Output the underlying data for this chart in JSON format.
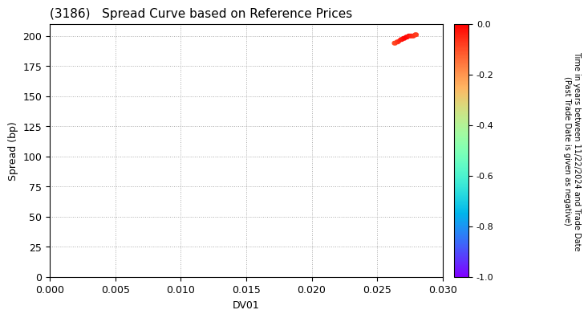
{
  "title": "(3186)   Spread Curve based on Reference Prices",
  "xlabel": "DV01",
  "ylabel": "Spread (bp)",
  "xlim": [
    0.0,
    0.03
  ],
  "ylim": [
    0,
    210
  ],
  "xticks": [
    0.0,
    0.005,
    0.01,
    0.015,
    0.02,
    0.025,
    0.03
  ],
  "yticks": [
    0,
    25,
    50,
    75,
    100,
    125,
    150,
    175,
    200
  ],
  "colorbar_label": "Time in years between 11/22/2024 and Trade Date\n(Past Trade Date is given as negative)",
  "colorbar_min": -1.0,
  "colorbar_max": 0.0,
  "colorbar_ticks": [
    0.0,
    -0.2,
    -0.4,
    -0.6,
    -0.8,
    -1.0
  ],
  "colorbar_ticklabels": [
    "0.0",
    "-0.2",
    "-0.4",
    "-0.6",
    "-0.8",
    "-1.0"
  ],
  "scatter_x": [
    0.0263,
    0.0264,
    0.0265,
    0.0266,
    0.0267,
    0.0268,
    0.0269,
    0.027,
    0.0271,
    0.0272,
    0.0273,
    0.0274,
    0.0275,
    0.0276,
    0.0277,
    0.0278,
    0.0279,
    0.028
  ],
  "scatter_y": [
    194,
    194,
    195,
    195,
    196,
    197,
    197,
    198,
    198,
    199,
    199,
    200,
    200,
    200,
    200,
    200,
    201,
    201
  ],
  "scatter_c": [
    -0.1,
    -0.09,
    -0.08,
    -0.07,
    -0.05,
    -0.04,
    -0.03,
    -0.02,
    -0.01,
    0.0,
    -0.01,
    -0.02,
    -0.03,
    -0.04,
    -0.05,
    -0.06,
    -0.07,
    -0.08
  ],
  "point_size": 18,
  "background_color": "#ffffff",
  "grid_color": "#aaaaaa",
  "title_fontsize": 11,
  "axis_label_fontsize": 9,
  "tick_fontsize": 9,
  "cbar_tick_fontsize": 8,
  "cbar_label_fontsize": 7
}
